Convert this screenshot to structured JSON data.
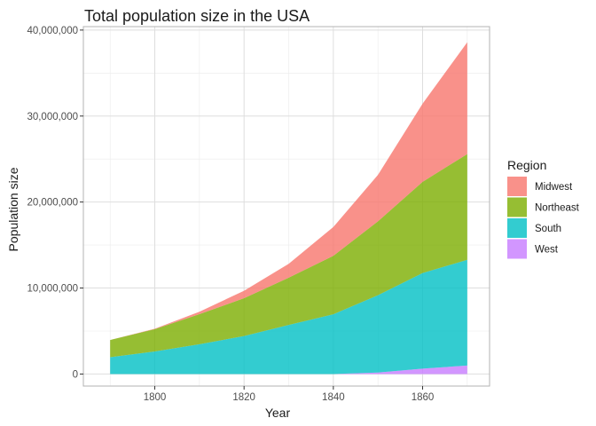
{
  "chart_data": {
    "type": "area",
    "stacked": true,
    "title": "Total population size in the USA",
    "xlabel": "Year",
    "ylabel": "Population size",
    "x": [
      1790,
      1800,
      1810,
      1820,
      1830,
      1840,
      1850,
      1860,
      1870
    ],
    "xlim": [
      1784,
      1875
    ],
    "ylim": [
      -1400000,
      40400000
    ],
    "x_ticks": [
      1800,
      1820,
      1840,
      1860
    ],
    "y_ticks": [
      0,
      10000000,
      20000000,
      30000000,
      40000000
    ],
    "y_tick_labels": [
      "0",
      "10,000,000",
      "20,000,000",
      "30,000,000",
      "40,000,000"
    ],
    "grid": true,
    "legend_title": "Region",
    "legend_position": "right",
    "series": [
      {
        "name": "Midwest",
        "color": "#F8766D",
        "values": [
          0,
          50000,
          290000,
          860000,
          1610000,
          3350000,
          5400000,
          9100000,
          13000000
        ]
      },
      {
        "name": "Northeast",
        "color": "#7CAE00",
        "values": [
          2000000,
          2600000,
          3500000,
          4400000,
          5500000,
          6800000,
          8600000,
          10600000,
          12300000
        ]
      },
      {
        "name": "South",
        "color": "#00BFC4",
        "values": [
          1960000,
          2620000,
          3460000,
          4420000,
          5710000,
          6950000,
          8980000,
          11130000,
          12290000
        ]
      },
      {
        "name": "West",
        "color": "#C77CFF",
        "values": [
          0,
          0,
          0,
          0,
          0,
          0,
          180000,
          620000,
          990000
        ]
      }
    ]
  }
}
